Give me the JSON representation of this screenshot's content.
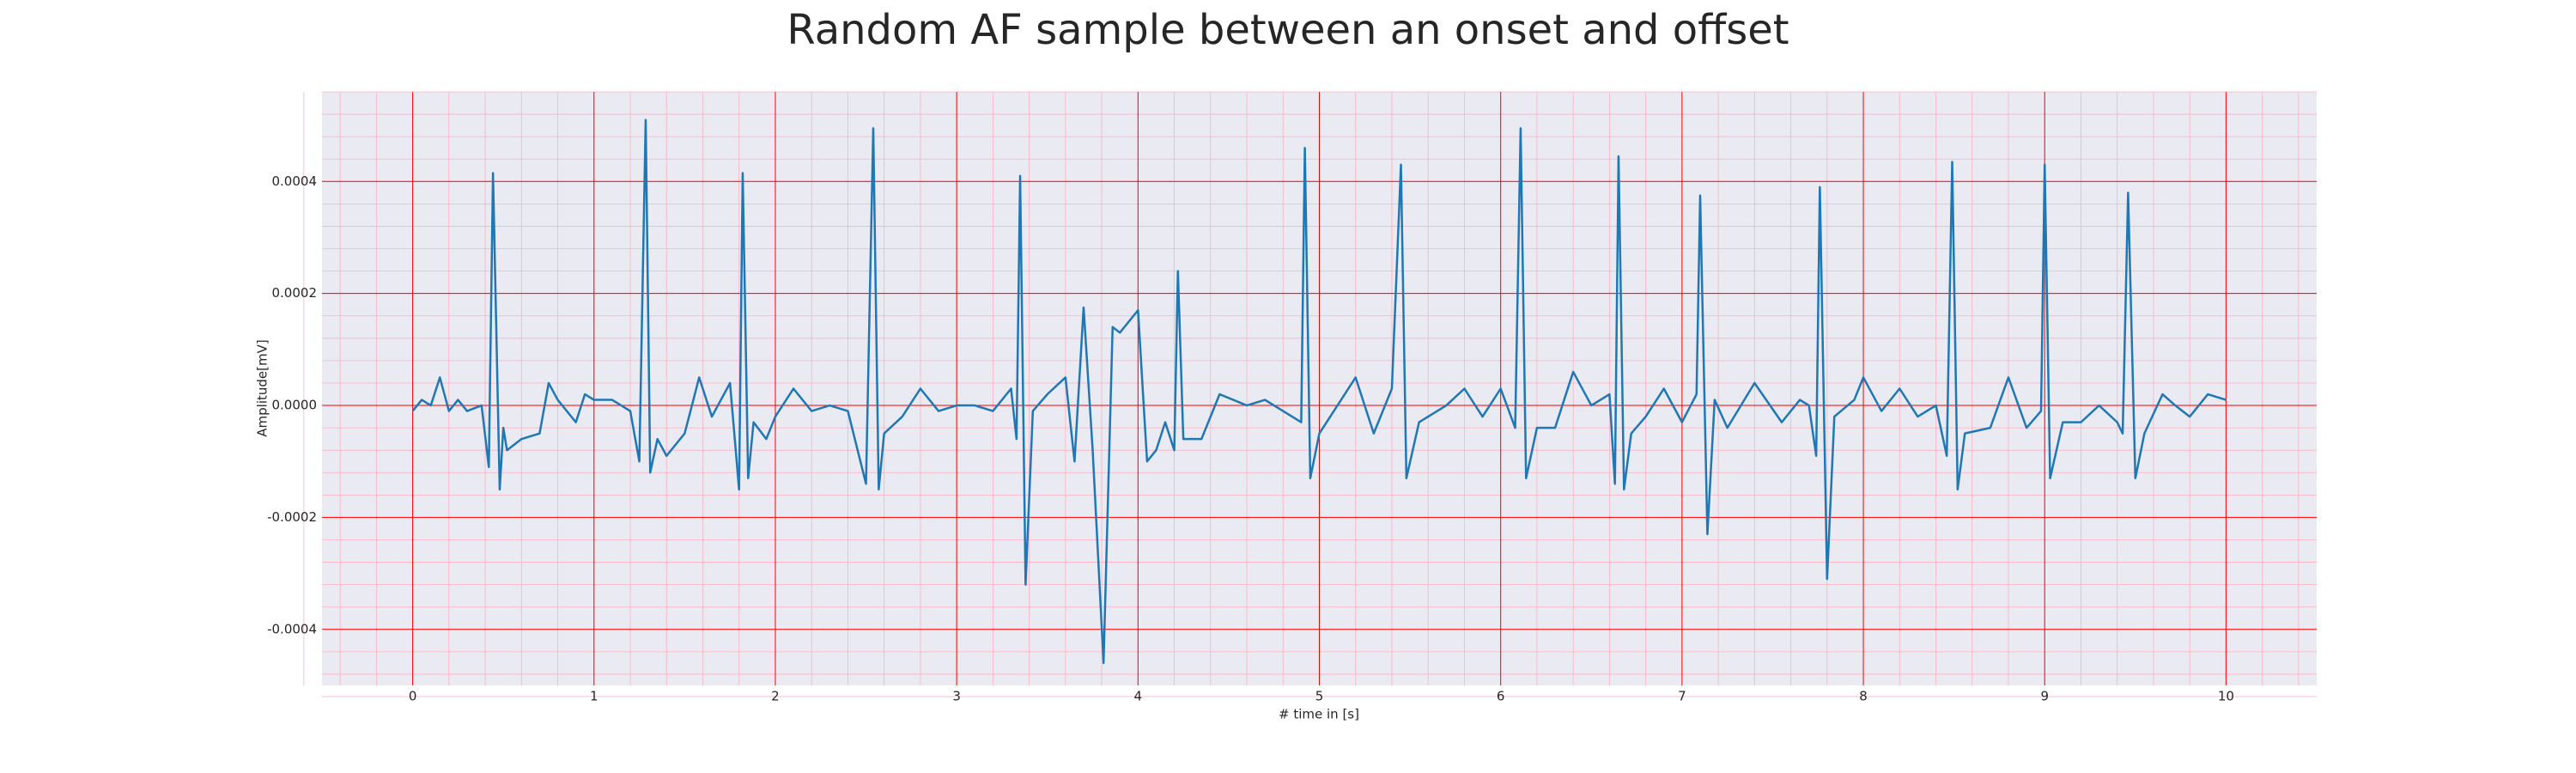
{
  "chart_data": {
    "type": "line",
    "title": "Random AF sample between an onset and offset",
    "x_label": "# time in [s]",
    "y_label": "Amplitude[mV]",
    "xlim": [
      -0.5,
      10.5
    ],
    "ylim": [
      -0.0005,
      0.00056
    ],
    "xticks": [
      0,
      1,
      2,
      3,
      4,
      5,
      6,
      7,
      8,
      9,
      10
    ],
    "yticks": [
      -0.0004,
      -0.0002,
      {
        "value": 0,
        "label": "0.0000"
      },
      0.0002,
      0.0004
    ],
    "grid": true,
    "grid_color": "#ff0000",
    "minor_grid": 5,
    "minor_grid_color": "#ffb0c0",
    "background": "#eaeaf2",
    "color": "#1f77b4",
    "x": [
      0,
      0.05,
      0.1,
      0.15,
      0.2,
      0.25,
      0.3,
      0.38,
      0.42,
      0.443,
      0.47,
      0.48,
      0.5,
      0.52,
      0.6,
      0.7,
      0.75,
      0.8,
      0.9,
      0.95,
      1.0,
      1.1,
      1.2,
      1.25,
      1.285,
      1.31,
      1.35,
      1.4,
      1.5,
      1.58,
      1.65,
      1.75,
      1.8,
      1.82,
      1.85,
      1.88,
      1.95,
      2.0,
      2.1,
      2.2,
      2.3,
      2.4,
      2.5,
      2.54,
      2.57,
      2.6,
      2.7,
      2.8,
      2.9,
      3.0,
      3.1,
      3.2,
      3.3,
      3.33,
      3.35,
      3.38,
      3.42,
      3.5,
      3.6,
      3.65,
      3.7,
      3.75,
      3.81,
      3.86,
      3.9,
      4.0,
      4.05,
      4.1,
      4.15,
      4.2,
      4.22,
      4.25,
      4.35,
      4.45,
      4.6,
      4.7,
      4.8,
      4.9,
      4.92,
      4.95,
      5.0,
      5.2,
      5.3,
      5.4,
      5.45,
      5.48,
      5.55,
      5.7,
      5.8,
      5.9,
      6.0,
      6.08,
      6.11,
      6.14,
      6.2,
      6.3,
      6.4,
      6.5,
      6.6,
      6.63,
      6.65,
      6.68,
      6.72,
      6.8,
      6.9,
      7.0,
      7.08,
      7.1,
      7.14,
      7.18,
      7.25,
      7.4,
      7.55,
      7.65,
      7.7,
      7.74,
      7.76,
      7.8,
      7.84,
      7.95,
      8.0,
      8.1,
      8.2,
      8.3,
      8.4,
      8.46,
      8.49,
      8.52,
      8.56,
      8.7,
      8.8,
      8.9,
      8.98,
      9.0,
      9.03,
      9.1,
      9.2,
      9.3,
      9.4,
      9.43,
      9.46,
      9.5,
      9.55,
      9.65,
      9.72,
      9.8,
      9.9,
      10.0
    ],
    "values": [
      -1e-05,
      1e-05,
      0,
      5e-05,
      -1e-05,
      1e-05,
      -1e-05,
      0,
      -0.00011,
      0.000415,
      0,
      -0.00015,
      -4e-05,
      -8e-05,
      -6e-05,
      -5e-05,
      4e-05,
      1e-05,
      -3e-05,
      2e-05,
      1e-05,
      1e-05,
      -1e-05,
      -0.0001,
      0.00051,
      -0.00012,
      -6e-05,
      -9e-05,
      -5e-05,
      5e-05,
      -2e-05,
      4e-05,
      -0.00015,
      0.000415,
      -0.00013,
      -3e-05,
      -6e-05,
      -2e-05,
      3e-05,
      -1e-05,
      0,
      -1e-05,
      -0.00014,
      0.000495,
      -0.00015,
      -5e-05,
      -2e-05,
      3e-05,
      -1e-05,
      0,
      0,
      -1e-05,
      3e-05,
      -6e-05,
      0.00041,
      -0.00032,
      -1e-05,
      2e-05,
      5e-05,
      -0.0001,
      0.000175,
      -8e-05,
      -0.00046,
      0.00014,
      0.00013,
      0.00017,
      -0.0001,
      -8e-05,
      -3e-05,
      -8e-05,
      0.00024,
      -6e-05,
      -6e-05,
      2e-05,
      0,
      1e-05,
      -1e-05,
      -3e-05,
      0.00046,
      -0.00013,
      -5e-05,
      5e-05,
      -5e-05,
      3e-05,
      0.00043,
      -0.00013,
      -3e-05,
      0,
      3e-05,
      -2e-05,
      3e-05,
      -4e-05,
      0.000495,
      -0.00013,
      -4e-05,
      -4e-05,
      6e-05,
      0,
      2e-05,
      -0.00014,
      0.000445,
      -0.00015,
      -5e-05,
      -2e-05,
      3e-05,
      -3e-05,
      2e-05,
      0.000375,
      -0.00023,
      1e-05,
      -4e-05,
      4e-05,
      -3e-05,
      1e-05,
      0,
      -9e-05,
      0.00039,
      -0.00031,
      -2e-05,
      1e-05,
      5e-05,
      -1e-05,
      3e-05,
      -2e-05,
      0,
      -9e-05,
      0.000435,
      -0.00015,
      -5e-05,
      -4e-05,
      5e-05,
      -4e-05,
      -1e-05,
      0.00043,
      -0.00013,
      -3e-05,
      -3e-05,
      0,
      -3e-05,
      -5e-05,
      0.00038,
      -0.00013,
      -5e-05,
      2e-05,
      0,
      -2e-05,
      2e-05,
      1e-05
    ]
  }
}
